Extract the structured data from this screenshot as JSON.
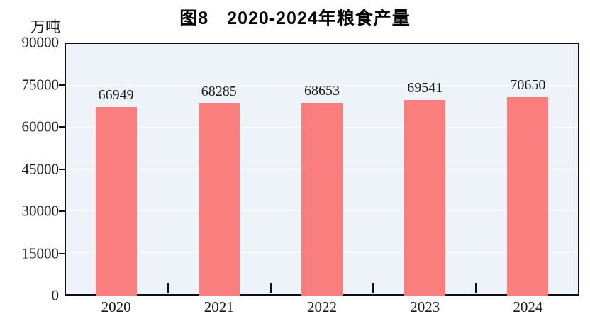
{
  "chart": {
    "title": "图8　2020-2024年粮食产量",
    "y_unit": "万吨"
  },
  "chart_data": {
    "type": "bar",
    "categories": [
      "2020",
      "2021",
      "2022",
      "2023",
      "2024"
    ],
    "values": [
      66949,
      68285,
      68653,
      69541,
      70650
    ],
    "value_labels": [
      "66949",
      "68285",
      "68653",
      "69541",
      "70650"
    ],
    "title": "图8　2020-2024年粮食产量",
    "xlabel": "",
    "ylabel": "万吨",
    "ylim": [
      0,
      90000
    ],
    "yticks": [
      0,
      15000,
      30000,
      45000,
      60000,
      75000,
      90000
    ],
    "grid": true,
    "legend_position": "none",
    "bar_color": "#fb7e7e",
    "plot_background": "#edf3f8",
    "grid_color": "#ffffff",
    "axis_color": "#111111",
    "text_color": "#1a1a1a"
  }
}
